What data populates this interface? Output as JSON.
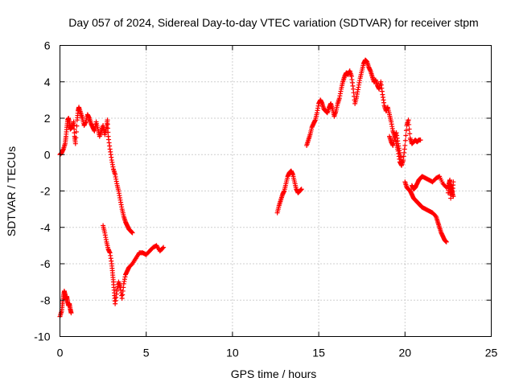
{
  "chart_data": {
    "type": "scatter",
    "title": "Day 057 of 2024, Sidereal Day-to-day VTEC variation (SDTVAR) for receiver stpm",
    "xlabel": "GPS time / hours",
    "ylabel": "SDTVAR / TECUs",
    "xlim": [
      0,
      25
    ],
    "ylim": [
      -10,
      6
    ],
    "x_ticks": [
      0,
      5,
      10,
      15,
      20,
      25
    ],
    "y_ticks": [
      -10,
      -8,
      -6,
      -4,
      -2,
      0,
      2,
      4,
      6
    ],
    "x_tick_labels": [
      "0",
      "5",
      "10",
      "15",
      "20",
      "25"
    ],
    "y_tick_labels": [
      "-10",
      "-8",
      "-6",
      "-4",
      "-2",
      "0",
      "2",
      "4",
      "6"
    ],
    "grid": true,
    "marker": "plus",
    "color": "#ff0000",
    "series": [
      {
        "name": "SDTVAR",
        "segments": [
          [
            [
              0.0,
              0.0
            ],
            [
              0.1,
              0.1
            ],
            [
              0.2,
              0.3
            ],
            [
              0.3,
              0.6
            ],
            [
              0.35,
              1.0
            ],
            [
              0.4,
              1.5
            ],
            [
              0.45,
              1.9
            ],
            [
              0.5,
              2.0
            ],
            [
              0.55,
              1.7
            ],
            [
              0.6,
              1.4
            ],
            [
              0.7,
              1.5
            ],
            [
              0.8,
              1.8
            ],
            [
              0.85,
              1.0
            ],
            [
              0.9,
              0.6
            ],
            [
              1.0,
              1.9
            ],
            [
              1.05,
              2.4
            ],
            [
              1.1,
              2.6
            ],
            [
              1.2,
              2.3
            ],
            [
              1.3,
              2.0
            ],
            [
              1.4,
              1.6
            ],
            [
              1.5,
              1.8
            ],
            [
              1.6,
              2.2
            ],
            [
              1.7,
              2.0
            ],
            [
              1.8,
              1.7
            ],
            [
              1.9,
              1.5
            ],
            [
              2.0,
              1.3
            ],
            [
              2.1,
              1.8
            ],
            [
              2.2,
              1.4
            ],
            [
              2.3,
              1.0
            ],
            [
              2.4,
              1.3
            ],
            [
              2.5,
              1.6
            ],
            [
              2.6,
              1.1
            ],
            [
              2.7,
              1.5
            ],
            [
              2.75,
              1.9
            ],
            [
              2.8,
              1.0
            ],
            [
              2.9,
              0.3
            ],
            [
              3.0,
              -0.3
            ],
            [
              3.1,
              -0.8
            ],
            [
              3.2,
              -1.1
            ],
            [
              3.3,
              -1.6
            ],
            [
              3.4,
              -2.0
            ],
            [
              3.5,
              -2.5
            ],
            [
              3.6,
              -3.0
            ],
            [
              3.7,
              -3.4
            ],
            [
              3.8,
              -3.7
            ],
            [
              3.9,
              -3.9
            ],
            [
              4.0,
              -4.1
            ],
            [
              4.1,
              -4.2
            ],
            [
              4.2,
              -4.3
            ]
          ],
          [
            [
              2.5,
              -3.9
            ],
            [
              2.6,
              -4.3
            ],
            [
              2.7,
              -4.8
            ],
            [
              2.8,
              -5.2
            ],
            [
              2.9,
              -5.4
            ],
            [
              3.0,
              -6.0
            ],
            [
              3.05,
              -6.5
            ],
            [
              3.1,
              -7.0
            ],
            [
              3.15,
              -7.6
            ],
            [
              3.2,
              -8.2
            ],
            [
              3.3,
              -7.5
            ],
            [
              3.4,
              -7.0
            ],
            [
              3.5,
              -7.3
            ],
            [
              3.6,
              -7.9
            ],
            [
              3.7,
              -7.1
            ],
            [
              3.8,
              -6.6
            ],
            [
              3.9,
              -6.4
            ],
            [
              4.0,
              -6.2
            ],
            [
              4.2,
              -6.0
            ],
            [
              4.4,
              -5.7
            ],
            [
              4.6,
              -5.4
            ],
            [
              4.8,
              -5.4
            ],
            [
              5.0,
              -5.5
            ],
            [
              5.2,
              -5.3
            ],
            [
              5.4,
              -5.1
            ],
            [
              5.6,
              -5.0
            ],
            [
              5.8,
              -5.3
            ],
            [
              6.0,
              -5.1
            ]
          ],
          [
            [
              0.0,
              -8.9
            ],
            [
              0.1,
              -8.6
            ],
            [
              0.15,
              -8.2
            ],
            [
              0.2,
              -7.8
            ],
            [
              0.25,
              -7.5
            ],
            [
              0.3,
              -7.7
            ],
            [
              0.35,
              -8.0
            ],
            [
              0.4,
              -7.8
            ],
            [
              0.45,
              -8.1
            ],
            [
              0.5,
              -8.3
            ],
            [
              0.55,
              -8.2
            ],
            [
              0.6,
              -8.5
            ],
            [
              0.65,
              -8.7
            ]
          ],
          [
            [
              12.6,
              -3.2
            ],
            [
              12.7,
              -2.8
            ],
            [
              12.8,
              -2.5
            ],
            [
              12.9,
              -2.2
            ],
            [
              13.0,
              -2.0
            ],
            [
              13.1,
              -1.6
            ],
            [
              13.2,
              -1.2
            ],
            [
              13.3,
              -1.0
            ],
            [
              13.4,
              -0.9
            ],
            [
              13.5,
              -1.1
            ],
            [
              13.6,
              -1.5
            ],
            [
              13.7,
              -1.9
            ],
            [
              13.8,
              -2.1
            ],
            [
              13.9,
              -2.0
            ],
            [
              14.0,
              -1.9
            ]
          ],
          [
            [
              14.3,
              0.5
            ],
            [
              14.4,
              0.8
            ],
            [
              14.5,
              1.1
            ],
            [
              14.6,
              1.5
            ],
            [
              14.7,
              1.7
            ],
            [
              14.8,
              1.9
            ],
            [
              14.9,
              2.3
            ],
            [
              15.0,
              2.8
            ],
            [
              15.1,
              3.0
            ],
            [
              15.2,
              2.8
            ],
            [
              15.3,
              2.5
            ],
            [
              15.4,
              2.4
            ],
            [
              15.5,
              2.3
            ],
            [
              15.6,
              2.6
            ],
            [
              15.7,
              2.8
            ],
            [
              15.8,
              2.5
            ],
            [
              15.9,
              2.1
            ],
            [
              16.0,
              2.4
            ],
            [
              16.1,
              2.8
            ],
            [
              16.2,
              3.1
            ],
            [
              16.3,
              3.6
            ],
            [
              16.4,
              4.0
            ],
            [
              16.5,
              4.3
            ],
            [
              16.6,
              4.5
            ],
            [
              16.7,
              4.4
            ],
            [
              16.8,
              4.6
            ],
            [
              16.9,
              4.3
            ],
            [
              17.0,
              3.6
            ],
            [
              17.1,
              2.8
            ],
            [
              17.2,
              3.2
            ],
            [
              17.3,
              3.7
            ],
            [
              17.4,
              4.2
            ],
            [
              17.5,
              4.6
            ],
            [
              17.6,
              5.0
            ],
            [
              17.7,
              5.2
            ],
            [
              17.8,
              5.1
            ],
            [
              17.9,
              4.8
            ],
            [
              18.0,
              4.6
            ],
            [
              18.1,
              4.3
            ],
            [
              18.2,
              4.0
            ],
            [
              18.3,
              4.1
            ],
            [
              18.4,
              3.8
            ],
            [
              18.5,
              3.6
            ],
            [
              18.6,
              4.0
            ],
            [
              18.7,
              3.3
            ],
            [
              18.8,
              2.7
            ],
            [
              18.9,
              2.4
            ],
            [
              19.0,
              2.6
            ],
            [
              19.1,
              2.2
            ],
            [
              19.2,
              1.8
            ],
            [
              19.3,
              1.3
            ],
            [
              19.4,
              1.0
            ],
            [
              19.5,
              0.6
            ],
            [
              19.6,
              0.2
            ],
            [
              19.7,
              -0.4
            ],
            [
              19.8,
              -0.6
            ],
            [
              19.9,
              -0.3
            ],
            [
              20.0,
              0.5
            ],
            [
              20.1,
              1.6
            ],
            [
              20.2,
              1.9
            ],
            [
              20.3,
              0.9
            ],
            [
              20.4,
              0.6
            ],
            [
              20.5,
              0.7
            ],
            [
              20.6,
              0.8
            ],
            [
              20.7,
              0.7
            ],
            [
              20.8,
              0.8
            ],
            [
              20.9,
              0.8
            ]
          ],
          [
            [
              19.1,
              1.0
            ],
            [
              19.2,
              0.7
            ],
            [
              19.3,
              0.5
            ],
            [
              19.4,
              0.9
            ],
            [
              19.5,
              1.2
            ],
            [
              19.6,
              0.6
            ],
            [
              19.7,
              0.1
            ],
            [
              19.8,
              -0.4
            ]
          ],
          [
            [
              20.0,
              -1.5
            ],
            [
              20.1,
              -1.8
            ],
            [
              20.2,
              -1.9
            ],
            [
              20.3,
              -2.0
            ],
            [
              20.4,
              -2.2
            ],
            [
              20.5,
              -2.4
            ],
            [
              20.6,
              -2.5
            ],
            [
              20.7,
              -2.6
            ],
            [
              20.8,
              -2.7
            ],
            [
              20.9,
              -2.8
            ],
            [
              21.0,
              -2.9
            ],
            [
              21.2,
              -3.0
            ],
            [
              21.4,
              -3.1
            ],
            [
              21.6,
              -3.2
            ],
            [
              21.8,
              -3.4
            ],
            [
              21.9,
              -3.7
            ],
            [
              22.0,
              -4.0
            ],
            [
              22.1,
              -4.3
            ],
            [
              22.2,
              -4.5
            ],
            [
              22.3,
              -4.7
            ],
            [
              22.4,
              -4.8
            ]
          ],
          [
            [
              20.4,
              -1.7
            ],
            [
              20.5,
              -1.9
            ],
            [
              20.6,
              -1.8
            ],
            [
              20.7,
              -1.6
            ],
            [
              20.8,
              -1.4
            ],
            [
              20.9,
              -1.3
            ],
            [
              21.0,
              -1.2
            ],
            [
              21.2,
              -1.3
            ],
            [
              21.4,
              -1.4
            ],
            [
              21.6,
              -1.5
            ],
            [
              21.8,
              -1.3
            ],
            [
              22.0,
              -1.2
            ],
            [
              22.2,
              -1.6
            ],
            [
              22.4,
              -1.8
            ],
            [
              22.6,
              -1.7
            ],
            [
              22.7,
              -2.0
            ],
            [
              22.8,
              -2.3
            ]
          ],
          [
            [
              22.5,
              -2.1
            ],
            [
              22.55,
              -1.6
            ],
            [
              22.6,
              -1.4
            ],
            [
              22.65,
              -2.4
            ],
            [
              22.7,
              -1.7
            ],
            [
              22.75,
              -2.2
            ],
            [
              22.8,
              -1.5
            ]
          ]
        ]
      }
    ]
  }
}
